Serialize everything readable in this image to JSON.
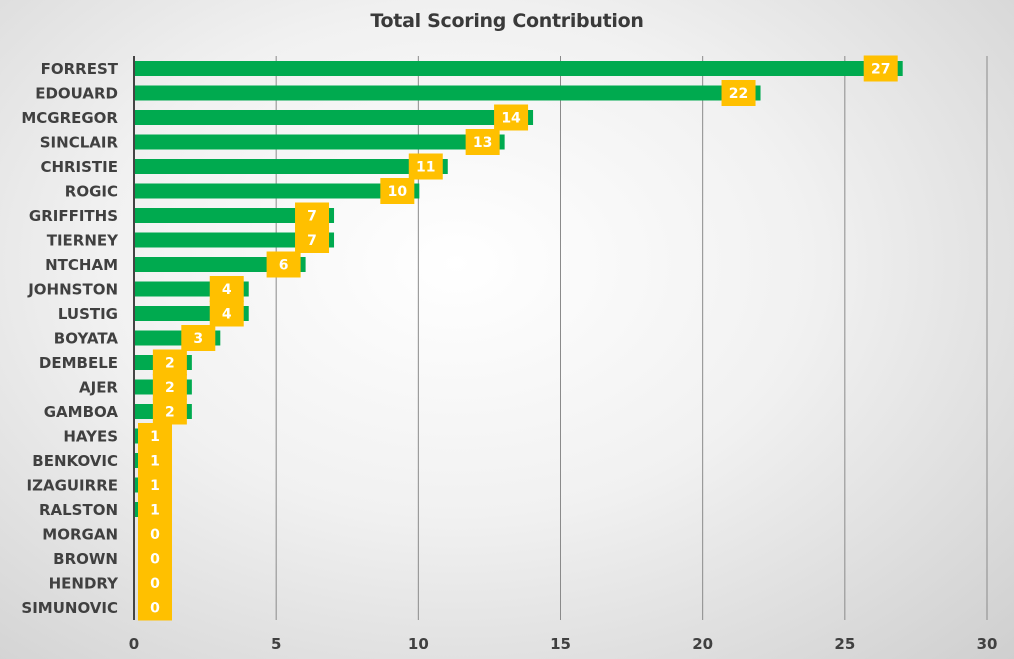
{
  "colors": {
    "bar": "#00aa4f",
    "label_box": "#ffc000",
    "label_text": "#ffffff",
    "axis": "#444444",
    "grid": "#8a8a8a",
    "text": "#404040"
  },
  "chart_data": {
    "type": "bar",
    "orientation": "horizontal",
    "title": "Total Scoring Contribution",
    "xlabel": "",
    "ylabel": "",
    "categories": [
      "FORREST",
      "EDOUARD",
      "MCGREGOR",
      "SINCLAIR",
      "CHRISTIE",
      "ROGIC",
      "GRIFFITHS",
      "TIERNEY",
      "NTCHAM",
      "JOHNSTON",
      "LUSTIG",
      "BOYATA",
      "DEMBELE",
      "AJER",
      "GAMBOA",
      "HAYES",
      "BENKOVIC",
      "IZAGUIRRE",
      "RALSTON",
      "MORGAN",
      "BROWN",
      "HENDRY",
      "SIMUNOVIC"
    ],
    "values": [
      27,
      22,
      14,
      13,
      11,
      10,
      7,
      7,
      6,
      4,
      4,
      3,
      2,
      2,
      2,
      1,
      1,
      1,
      1,
      0,
      0,
      0,
      0
    ],
    "xlim": [
      0,
      30
    ],
    "xticks": [
      0,
      5,
      10,
      15,
      20,
      25,
      30
    ],
    "grid": "vertical",
    "legend": "none",
    "data_labels": true
  }
}
